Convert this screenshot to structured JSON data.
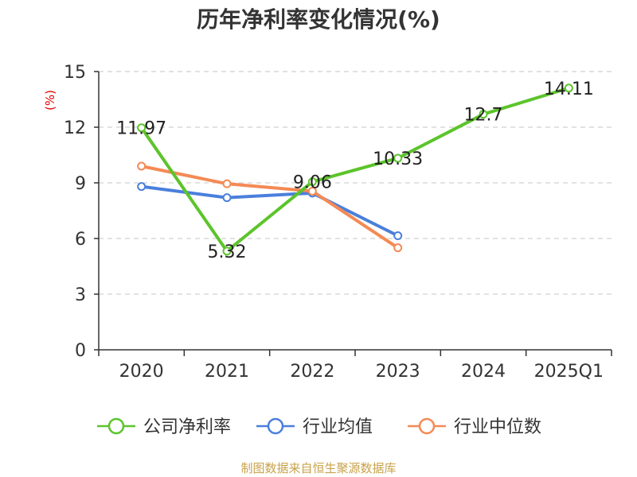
{
  "chart_data": {
    "type": "line",
    "title": "历年净利率变化情况(%)",
    "ylabel": "(%)",
    "xlabel": "",
    "categories": [
      "2020",
      "2021",
      "2022",
      "2023",
      "2024",
      "2025Q1"
    ],
    "ylim": [
      0,
      15
    ],
    "yticks": [
      0,
      3,
      6,
      9,
      12,
      15
    ],
    "grid": true,
    "legend": "bottom",
    "series": [
      {
        "name": "公司净利率",
        "color": "#5cc42b",
        "values": [
          11.97,
          5.32,
          9.06,
          10.33,
          12.7,
          14.11
        ],
        "labels": [
          "11.97",
          "5.32",
          "9.06",
          "10.33",
          "12.7",
          "14.11"
        ]
      },
      {
        "name": "行业均值",
        "color": "#4a7fdc",
        "values": [
          8.8,
          8.2,
          8.45,
          6.15,
          null,
          null
        ],
        "labels": []
      },
      {
        "name": "行业中位数",
        "color": "#f48a55",
        "values": [
          9.9,
          8.95,
          8.55,
          5.5,
          null,
          null
        ],
        "labels": []
      }
    ]
  },
  "footer": {
    "source": "制图数据来自恒生聚源数据库"
  }
}
